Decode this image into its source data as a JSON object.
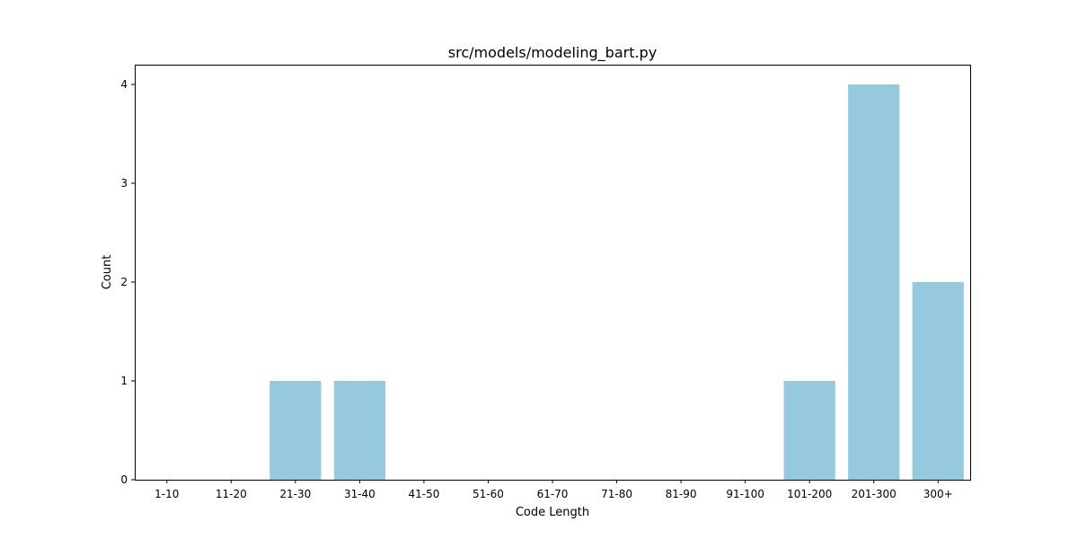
{
  "chart_data": {
    "type": "bar",
    "title": "src/models/modeling_bart.py",
    "xlabel": "Code Length",
    "ylabel": "Count",
    "categories": [
      "1-10",
      "11-20",
      "21-30",
      "31-40",
      "41-50",
      "51-60",
      "61-70",
      "71-80",
      "81-90",
      "91-100",
      "101-200",
      "201-300",
      "300+"
    ],
    "values": [
      0,
      0,
      1,
      1,
      0,
      0,
      0,
      0,
      0,
      0,
      1,
      4,
      2
    ],
    "ylim": [
      0,
      4.2
    ],
    "yticks": [
      "0",
      "1",
      "2",
      "3",
      "4"
    ],
    "bar_color": "#96c9de",
    "grid": false,
    "legend": "none"
  }
}
